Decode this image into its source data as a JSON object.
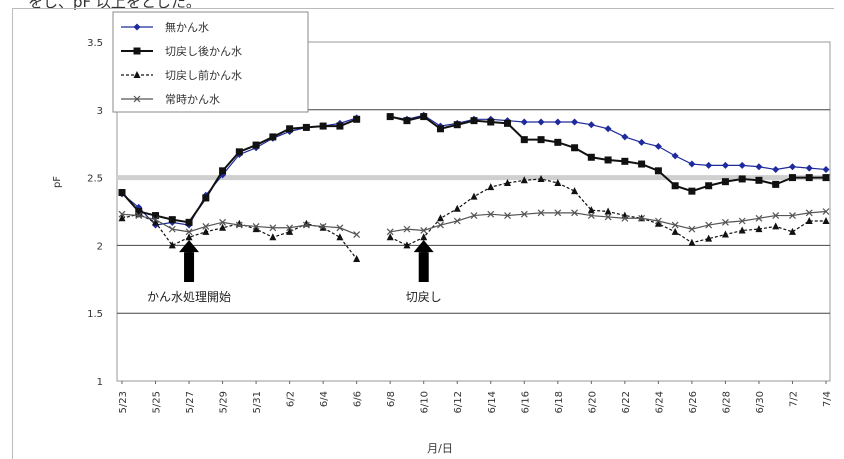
{
  "top_text": "をし、pF 以上をとした。",
  "chart_data": {
    "type": "line",
    "xlabel": "月/日",
    "ylabel": "pF",
    "ylim": [
      1,
      3.5
    ],
    "yticks": [
      "1",
      "1.5",
      "2",
      "2.5",
      "3",
      "3.5"
    ],
    "grid": "horizontal",
    "legend_position": "top-left",
    "annotations": [
      {
        "text": "かん水処理開始",
        "date": "5/27"
      },
      {
        "text": "切戻し",
        "date": "6/10"
      }
    ],
    "x_ticks": [
      "5/23",
      "5/25",
      "5/27",
      "5/29",
      "5/31",
      "6/2",
      "6/4",
      "6/6",
      "6/8",
      "6/10",
      "6/12",
      "6/14",
      "6/16",
      "6/18",
      "6/20",
      "6/22",
      "6/24",
      "6/26",
      "6/28",
      "6/30",
      "7/2",
      "7/4"
    ],
    "series": [
      {
        "name": "無かん水",
        "color": "#1f2a9c",
        "marker": "diamond",
        "dashed": false,
        "points": [
          [
            "5/23",
            2.38
          ],
          [
            "5/24",
            2.28
          ],
          [
            "5/25",
            2.15
          ],
          [
            "5/26",
            2.17
          ],
          [
            "5/27",
            2.15
          ],
          [
            "5/28",
            2.37
          ],
          [
            "5/29",
            2.52
          ],
          [
            "5/30",
            2.67
          ],
          [
            "5/31",
            2.72
          ],
          [
            "6/1",
            2.79
          ],
          [
            "6/2",
            2.84
          ],
          [
            "6/3",
            2.87
          ],
          [
            "6/4",
            2.88
          ],
          [
            "6/5",
            2.9
          ],
          [
            "6/6",
            2.94
          ],
          [
            "6/8",
            2.95
          ],
          [
            "6/9",
            2.93
          ],
          [
            "6/10",
            2.96
          ],
          [
            "6/11",
            2.88
          ],
          [
            "6/12",
            2.9
          ],
          [
            "6/13",
            2.93
          ],
          [
            "6/14",
            2.93
          ],
          [
            "6/15",
            2.92
          ],
          [
            "6/16",
            2.91
          ],
          [
            "6/17",
            2.91
          ],
          [
            "6/18",
            2.91
          ],
          [
            "6/19",
            2.91
          ],
          [
            "6/20",
            2.89
          ],
          [
            "6/21",
            2.86
          ],
          [
            "6/22",
            2.8
          ],
          [
            "6/23",
            2.76
          ],
          [
            "6/24",
            2.73
          ],
          [
            "6/25",
            2.66
          ],
          [
            "6/26",
            2.6
          ],
          [
            "6/27",
            2.59
          ],
          [
            "6/28",
            2.59
          ],
          [
            "6/29",
            2.59
          ],
          [
            "6/30",
            2.58
          ],
          [
            "7/1",
            2.56
          ],
          [
            "7/2",
            2.58
          ],
          [
            "7/3",
            2.57
          ],
          [
            "7/4",
            2.56
          ]
        ]
      },
      {
        "name": "切戻し後かん水",
        "color": "#111111",
        "marker": "square",
        "dashed": false,
        "points": [
          [
            "5/23",
            2.39
          ],
          [
            "5/24",
            2.25
          ],
          [
            "5/25",
            2.22
          ],
          [
            "5/26",
            2.19
          ],
          [
            "5/27",
            2.17
          ],
          [
            "5/28",
            2.35
          ],
          [
            "5/29",
            2.55
          ],
          [
            "5/30",
            2.69
          ],
          [
            "5/31",
            2.74
          ],
          [
            "6/1",
            2.8
          ],
          [
            "6/2",
            2.86
          ],
          [
            "6/3",
            2.87
          ],
          [
            "6/4",
            2.88
          ],
          [
            "6/5",
            2.88
          ],
          [
            "6/6",
            2.93
          ],
          [
            "6/8",
            2.95
          ],
          [
            "6/9",
            2.92
          ],
          [
            "6/10",
            2.95
          ],
          [
            "6/11",
            2.86
          ],
          [
            "6/12",
            2.89
          ],
          [
            "6/13",
            2.92
          ],
          [
            "6/14",
            2.91
          ],
          [
            "6/15",
            2.9
          ],
          [
            "6/16",
            2.78
          ],
          [
            "6/17",
            2.78
          ],
          [
            "6/18",
            2.76
          ],
          [
            "6/19",
            2.72
          ],
          [
            "6/20",
            2.65
          ],
          [
            "6/21",
            2.63
          ],
          [
            "6/22",
            2.62
          ],
          [
            "6/23",
            2.6
          ],
          [
            "6/24",
            2.55
          ],
          [
            "6/25",
            2.44
          ],
          [
            "6/26",
            2.4
          ],
          [
            "6/27",
            2.44
          ],
          [
            "6/28",
            2.47
          ],
          [
            "6/29",
            2.49
          ],
          [
            "6/30",
            2.48
          ],
          [
            "7/1",
            2.45
          ],
          [
            "7/2",
            2.5
          ],
          [
            "7/3",
            2.5
          ],
          [
            "7/4",
            2.5
          ]
        ]
      },
      {
        "name": "切戻し前かん水",
        "color": "#111111",
        "marker": "triangle",
        "dashed": true,
        "points": [
          [
            "5/23",
            2.2
          ],
          [
            "5/24",
            2.23
          ],
          [
            "5/25",
            2.17
          ],
          [
            "5/26",
            2.0
          ],
          [
            "5/27",
            2.06
          ],
          [
            "5/28",
            2.1
          ],
          [
            "5/29",
            2.13
          ],
          [
            "5/30",
            2.16
          ],
          [
            "5/31",
            2.12
          ],
          [
            "6/1",
            2.06
          ],
          [
            "6/2",
            2.1
          ],
          [
            "6/3",
            2.16
          ],
          [
            "6/4",
            2.13
          ],
          [
            "6/5",
            2.06
          ],
          [
            "6/6",
            1.9
          ],
          [
            "6/8",
            2.06
          ],
          [
            "6/9",
            2.0
          ],
          [
            "6/10",
            2.06
          ],
          [
            "6/11",
            2.2
          ],
          [
            "6/12",
            2.27
          ],
          [
            "6/13",
            2.36
          ],
          [
            "6/14",
            2.43
          ],
          [
            "6/15",
            2.46
          ],
          [
            "6/16",
            2.48
          ],
          [
            "6/17",
            2.49
          ],
          [
            "6/18",
            2.46
          ],
          [
            "6/19",
            2.4
          ],
          [
            "6/20",
            2.26
          ],
          [
            "6/21",
            2.25
          ],
          [
            "6/22",
            2.22
          ],
          [
            "6/23",
            2.2
          ],
          [
            "6/24",
            2.16
          ],
          [
            "6/25",
            2.1
          ],
          [
            "6/26",
            2.02
          ],
          [
            "6/27",
            2.05
          ],
          [
            "6/28",
            2.08
          ],
          [
            "6/29",
            2.11
          ],
          [
            "6/30",
            2.12
          ],
          [
            "7/1",
            2.14
          ],
          [
            "7/2",
            2.1
          ],
          [
            "7/3",
            2.18
          ],
          [
            "7/4",
            2.18
          ]
        ]
      },
      {
        "name": "常時かん水",
        "color": "#555555",
        "marker": "x",
        "dashed": false,
        "points": [
          [
            "5/23",
            2.23
          ],
          [
            "5/24",
            2.22
          ],
          [
            "5/25",
            2.19
          ],
          [
            "5/26",
            2.12
          ],
          [
            "5/27",
            2.1
          ],
          [
            "5/28",
            2.14
          ],
          [
            "5/29",
            2.17
          ],
          [
            "5/30",
            2.15
          ],
          [
            "5/31",
            2.14
          ],
          [
            "6/1",
            2.13
          ],
          [
            "6/2",
            2.13
          ],
          [
            "6/3",
            2.15
          ],
          [
            "6/4",
            2.14
          ],
          [
            "6/5",
            2.13
          ],
          [
            "6/6",
            2.08
          ],
          [
            "6/8",
            2.1
          ],
          [
            "6/9",
            2.12
          ],
          [
            "6/10",
            2.11
          ],
          [
            "6/11",
            2.15
          ],
          [
            "6/12",
            2.18
          ],
          [
            "6/13",
            2.22
          ],
          [
            "6/14",
            2.23
          ],
          [
            "6/15",
            2.22
          ],
          [
            "6/16",
            2.23
          ],
          [
            "6/17",
            2.24
          ],
          [
            "6/18",
            2.24
          ],
          [
            "6/19",
            2.24
          ],
          [
            "6/20",
            2.22
          ],
          [
            "6/21",
            2.21
          ],
          [
            "6/22",
            2.2
          ],
          [
            "6/23",
            2.2
          ],
          [
            "6/24",
            2.18
          ],
          [
            "6/25",
            2.15
          ],
          [
            "6/26",
            2.12
          ],
          [
            "6/27",
            2.15
          ],
          [
            "6/28",
            2.17
          ],
          [
            "6/29",
            2.18
          ],
          [
            "6/30",
            2.2
          ],
          [
            "7/1",
            2.22
          ],
          [
            "7/2",
            2.22
          ],
          [
            "7/3",
            2.24
          ],
          [
            "7/4",
            2.25
          ]
        ]
      }
    ]
  }
}
